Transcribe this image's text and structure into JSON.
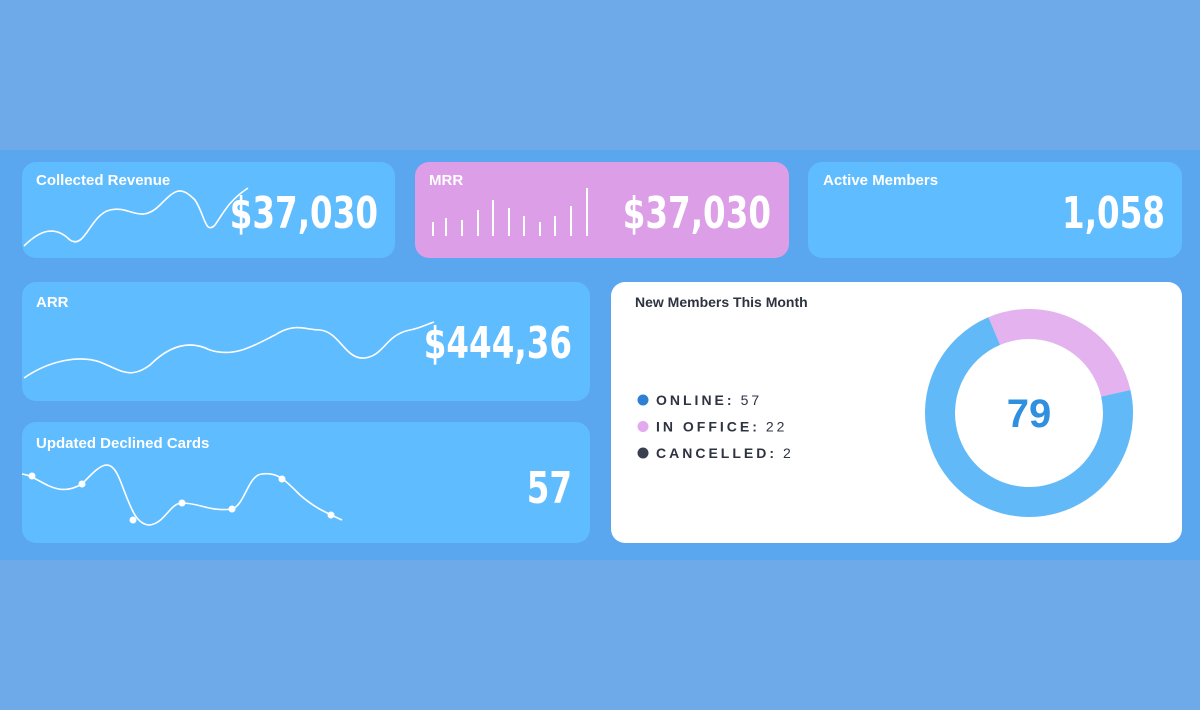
{
  "cards": [
    {
      "title": "Collected Revenue",
      "value": "$37,030"
    },
    {
      "title": "MRR",
      "value": "$37,030"
    },
    {
      "title": "Active Members",
      "value": "1,058"
    },
    {
      "title": "ARR",
      "value": "$444,36"
    },
    {
      "title": "Updated Declined Cards",
      "value": "57"
    }
  ],
  "new_members": {
    "title": "New Members This Month",
    "total": 79,
    "items": [
      {
        "label": "ONLINE:",
        "value": 57,
        "color": "#2f7fd4"
      },
      {
        "label": "IN OFFICE:",
        "value": 22,
        "color": "#e4aaf0"
      },
      {
        "label": "CANCELLED:",
        "value": 2,
        "color": "#394150"
      }
    ]
  }
}
